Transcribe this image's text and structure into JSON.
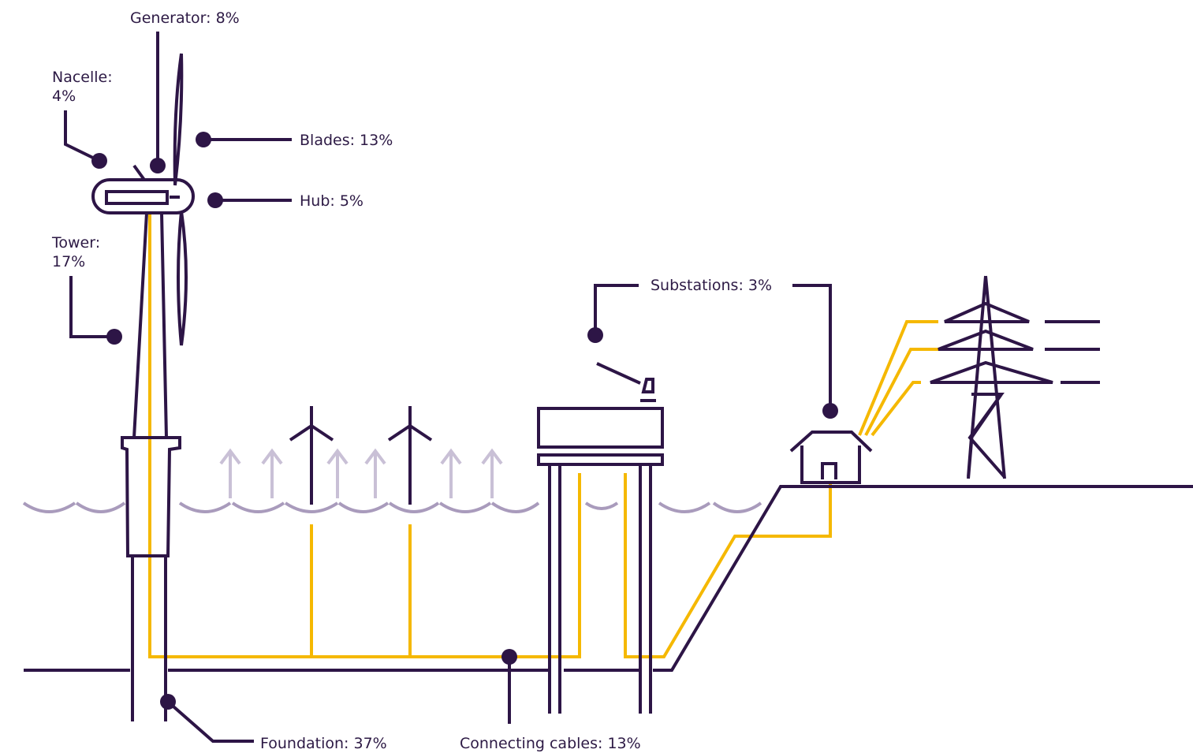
{
  "labels": {
    "generator": "Generator: 8%",
    "nacelle": [
      "Nacelle:",
      "4%"
    ],
    "blades": "Blades: 13%",
    "hub": "Hub: 5%",
    "tower": [
      "Tower:",
      "17%"
    ],
    "substations": "Substations: 3%",
    "foundation": "Foundation: 37%",
    "connecting_cables": "Connecting cables: 13%"
  }
}
